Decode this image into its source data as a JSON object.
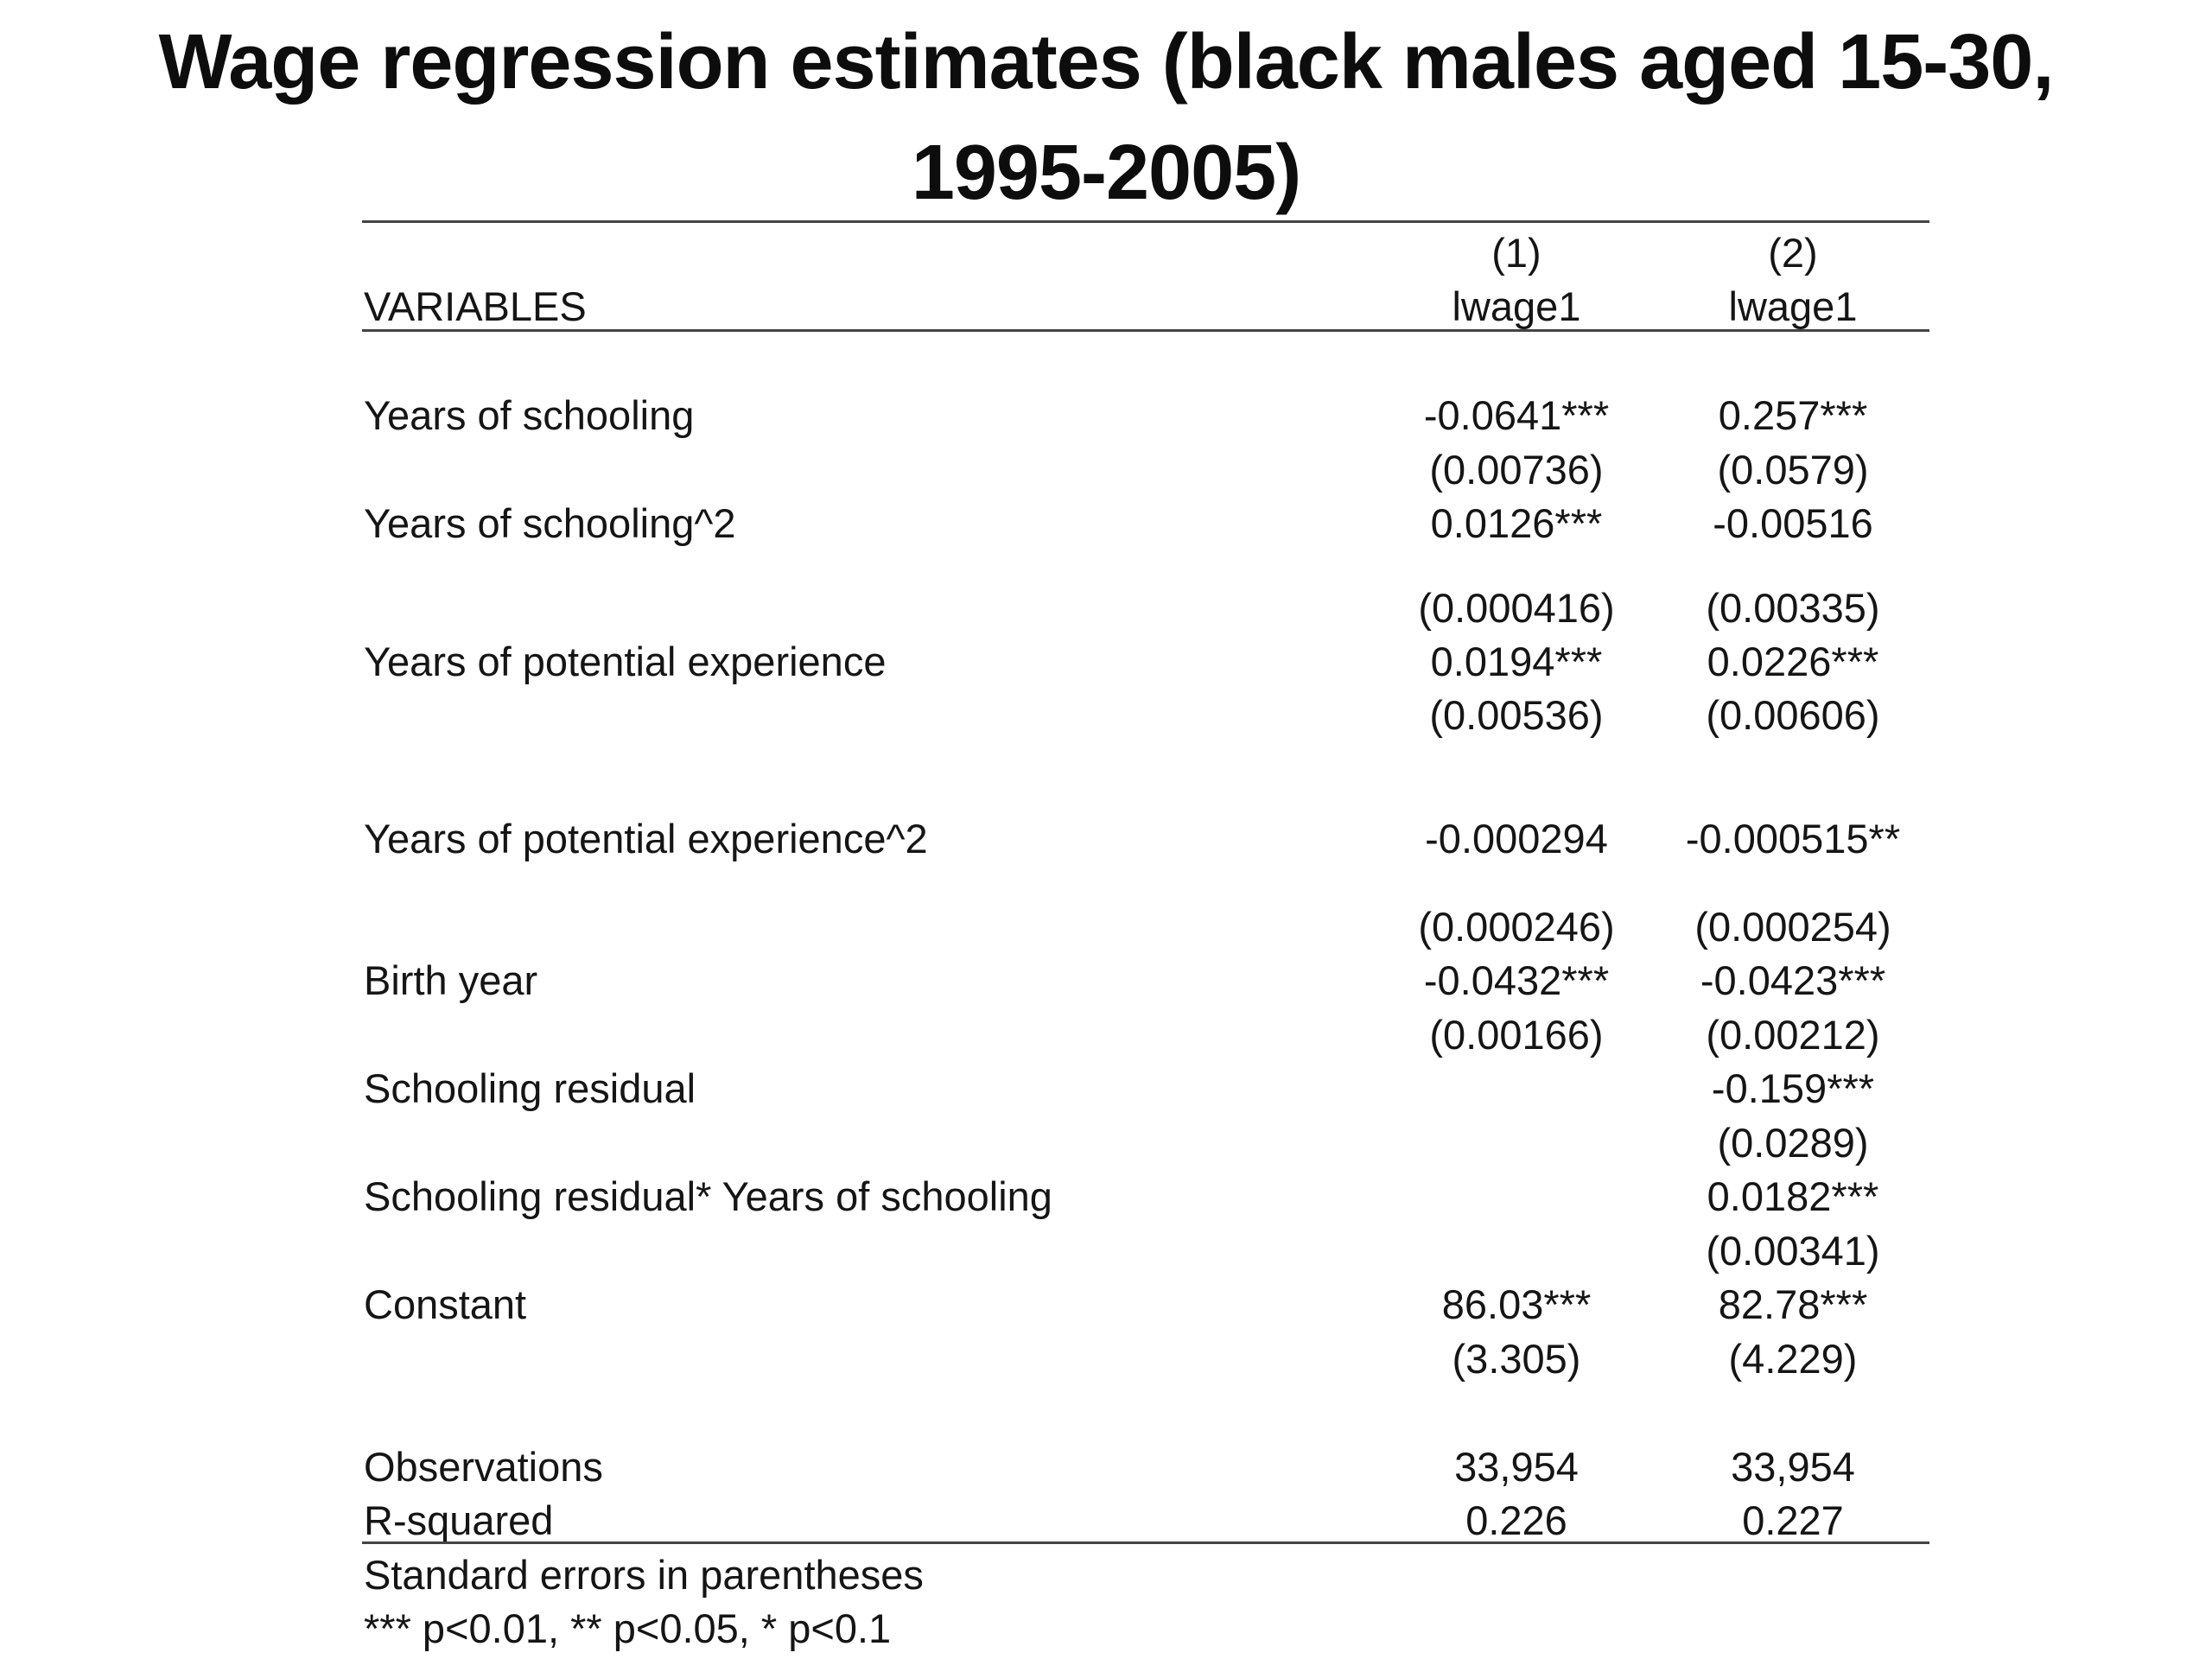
{
  "title": "Wage regression estimates (black males aged 15-30, 1995-2005)",
  "header": {
    "col_numbers": [
      "(1)",
      "(2)"
    ],
    "variables_label": "VARIABLES",
    "dep_vars": [
      "lwage1",
      "lwage1"
    ]
  },
  "rows": [
    {
      "label": "Years of schooling",
      "coef": [
        "-0.0641***",
        "0.257***"
      ],
      "se": [
        "(0.00736)",
        "(0.0579)"
      ]
    },
    {
      "label": "Years of schooling^2",
      "coef": [
        "0.0126***",
        "-0.00516"
      ],
      "se": [
        "(0.000416)",
        "(0.00335)"
      ]
    },
    {
      "label": "Years of potential experience",
      "coef": [
        "0.0194***",
        "0.0226***"
      ],
      "se": [
        "(0.00536)",
        "(0.00606)"
      ]
    },
    {
      "label": "Years of potential experience^2",
      "coef": [
        "-0.000294",
        "-0.000515**"
      ],
      "se": [
        "(0.000246)",
        "(0.000254)"
      ]
    },
    {
      "label": "Birth year",
      "coef": [
        "-0.0432***",
        "-0.0423***"
      ],
      "se": [
        "(0.00166)",
        "(0.00212)"
      ]
    },
    {
      "label": "Schooling residual",
      "coef": [
        "",
        "-0.159***"
      ],
      "se": [
        "",
        "(0.0289)"
      ]
    },
    {
      "label": "Schooling residual* Years of schooling",
      "coef": [
        "",
        "0.0182***"
      ],
      "se": [
        "",
        "(0.00341)"
      ]
    },
    {
      "label": "Constant",
      "coef": [
        "86.03***",
        "82.78***"
      ],
      "se": [
        "(3.305)",
        "(4.229)"
      ]
    }
  ],
  "stats": [
    {
      "label": "Observations",
      "values": [
        "33,954",
        "33,954"
      ]
    },
    {
      "label": "R-squared",
      "values": [
        "0.226",
        "0.227"
      ]
    }
  ],
  "notes": [
    "Standard errors in parentheses",
    "*** p<0.01, ** p<0.05, * p<0.1"
  ]
}
